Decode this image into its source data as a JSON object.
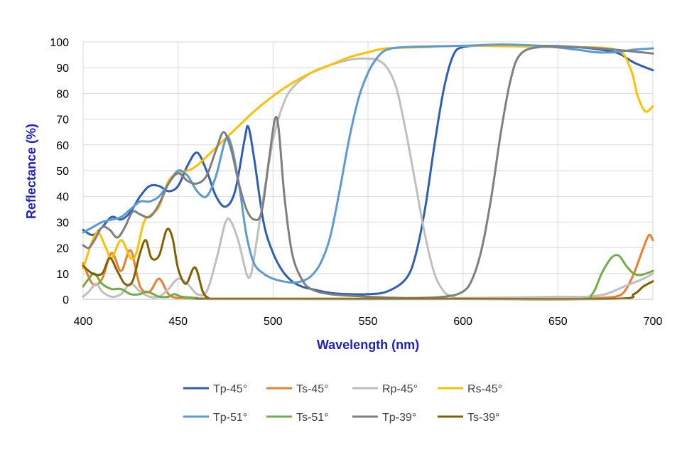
{
  "chart_data": {
    "type": "line",
    "title": "",
    "xlabel": "Wavelength (nm)",
    "ylabel": "Reflectance (%)",
    "xlim": [
      400,
      700
    ],
    "ylim": [
      0,
      100
    ],
    "xticks": [
      400,
      450,
      500,
      550,
      600,
      650,
      700
    ],
    "yticks": [
      0,
      10,
      20,
      30,
      40,
      50,
      60,
      70,
      80,
      90,
      100
    ],
    "grid": true,
    "legend_position": "bottom",
    "series": [
      {
        "name": "Tp-45°",
        "color": "#2f5fb3",
        "points": [
          [
            400,
            27
          ],
          [
            405,
            25
          ],
          [
            410,
            28
          ],
          [
            415,
            32
          ],
          [
            420,
            31
          ],
          [
            425,
            34
          ],
          [
            430,
            40
          ],
          [
            435,
            44
          ],
          [
            440,
            44
          ],
          [
            445,
            42
          ],
          [
            450,
            44
          ],
          [
            455,
            52
          ],
          [
            460,
            57
          ],
          [
            465,
            50
          ],
          [
            470,
            40
          ],
          [
            475,
            36
          ],
          [
            480,
            42
          ],
          [
            485,
            62
          ],
          [
            487,
            67
          ],
          [
            490,
            55
          ],
          [
            495,
            30
          ],
          [
            500,
            18
          ],
          [
            505,
            11
          ],
          [
            510,
            7
          ],
          [
            515,
            5
          ],
          [
            520,
            4
          ],
          [
            530,
            2.5
          ],
          [
            540,
            2
          ],
          [
            550,
            2
          ],
          [
            560,
            3
          ],
          [
            570,
            8
          ],
          [
            575,
            17
          ],
          [
            580,
            35
          ],
          [
            585,
            60
          ],
          [
            590,
            82
          ],
          [
            595,
            95
          ],
          [
            600,
            98
          ],
          [
            610,
            98.5
          ],
          [
            620,
            98.5
          ],
          [
            640,
            98.5
          ],
          [
            660,
            98
          ],
          [
            680,
            96
          ],
          [
            690,
            92
          ],
          [
            700,
            89
          ]
        ]
      },
      {
        "name": "Ts-45°",
        "color": "#ed7d31",
        "points": [
          [
            400,
            14
          ],
          [
            405,
            6
          ],
          [
            410,
            8
          ],
          [
            415,
            18
          ],
          [
            420,
            11
          ],
          [
            425,
            19
          ],
          [
            430,
            5
          ],
          [
            435,
            3
          ],
          [
            440,
            8
          ],
          [
            445,
            2
          ],
          [
            450,
            0.5
          ],
          [
            460,
            0.2
          ],
          [
            500,
            0.2
          ],
          [
            600,
            0.2
          ],
          [
            660,
            0.2
          ],
          [
            670,
            0.5
          ],
          [
            680,
            1
          ],
          [
            685,
            3
          ],
          [
            690,
            10
          ],
          [
            695,
            20
          ],
          [
            698,
            25
          ],
          [
            700,
            23
          ]
        ]
      },
      {
        "name": "Rp-45°",
        "color": "#bfbfbf",
        "points": [
          [
            400,
            1
          ],
          [
            403,
            3
          ],
          [
            407,
            6
          ],
          [
            410,
            3
          ],
          [
            415,
            1
          ],
          [
            420,
            2
          ],
          [
            425,
            6
          ],
          [
            430,
            3
          ],
          [
            435,
            1
          ],
          [
            440,
            1
          ],
          [
            445,
            4
          ],
          [
            450,
            8
          ],
          [
            455,
            6
          ],
          [
            460,
            2
          ],
          [
            465,
            3
          ],
          [
            470,
            15
          ],
          [
            475,
            30
          ],
          [
            478,
            30
          ],
          [
            482,
            22
          ],
          [
            486,
            10
          ],
          [
            488,
            9
          ],
          [
            490,
            16
          ],
          [
            495,
            40
          ],
          [
            500,
            62
          ],
          [
            505,
            75
          ],
          [
            510,
            82
          ],
          [
            520,
            88
          ],
          [
            530,
            91
          ],
          [
            540,
            93
          ],
          [
            545,
            93.5
          ],
          [
            550,
            93.5
          ],
          [
            555,
            93
          ],
          [
            560,
            90
          ],
          [
            565,
            82
          ],
          [
            570,
            65
          ],
          [
            575,
            45
          ],
          [
            580,
            25
          ],
          [
            585,
            10
          ],
          [
            590,
            3
          ],
          [
            595,
            1
          ],
          [
            600,
            0.5
          ],
          [
            650,
            1
          ],
          [
            665,
            1
          ],
          [
            675,
            2
          ],
          [
            685,
            5
          ],
          [
            695,
            8
          ],
          [
            700,
            10
          ]
        ]
      },
      {
        "name": "Rs-45°",
        "color": "#ffc000",
        "points": [
          [
            400,
            12
          ],
          [
            405,
            23
          ],
          [
            408,
            26
          ],
          [
            412,
            20
          ],
          [
            415,
            16
          ],
          [
            420,
            23
          ],
          [
            425,
            16
          ],
          [
            428,
            18
          ],
          [
            432,
            30
          ],
          [
            436,
            33
          ],
          [
            440,
            36
          ],
          [
            445,
            46
          ],
          [
            450,
            49
          ],
          [
            455,
            50
          ],
          [
            460,
            52
          ],
          [
            470,
            59
          ],
          [
            480,
            66
          ],
          [
            490,
            73
          ],
          [
            500,
            79
          ],
          [
            510,
            84
          ],
          [
            520,
            88
          ],
          [
            530,
            91
          ],
          [
            540,
            94
          ],
          [
            550,
            96
          ],
          [
            560,
            97.5
          ],
          [
            580,
            98
          ],
          [
            600,
            98.5
          ],
          [
            650,
            98
          ],
          [
            680,
            97
          ],
          [
            688,
            90
          ],
          [
            692,
            79
          ],
          [
            696,
            73
          ],
          [
            700,
            75
          ]
        ]
      },
      {
        "name": "Tp-51°",
        "color": "#5b9bd5",
        "points": [
          [
            400,
            26
          ],
          [
            405,
            28
          ],
          [
            410,
            30
          ],
          [
            415,
            31
          ],
          [
            420,
            32
          ],
          [
            425,
            35
          ],
          [
            430,
            38
          ],
          [
            435,
            38
          ],
          [
            440,
            40
          ],
          [
            445,
            45
          ],
          [
            450,
            50
          ],
          [
            455,
            48
          ],
          [
            460,
            42
          ],
          [
            465,
            40
          ],
          [
            470,
            48
          ],
          [
            475,
            62
          ],
          [
            478,
            60
          ],
          [
            482,
            45
          ],
          [
            486,
            25
          ],
          [
            490,
            14
          ],
          [
            495,
            10
          ],
          [
            500,
            8
          ],
          [
            505,
            7
          ],
          [
            510,
            6.5
          ],
          [
            515,
            7
          ],
          [
            520,
            9
          ],
          [
            525,
            14
          ],
          [
            530,
            24
          ],
          [
            535,
            42
          ],
          [
            540,
            62
          ],
          [
            545,
            78
          ],
          [
            550,
            88
          ],
          [
            555,
            94
          ],
          [
            560,
            97
          ],
          [
            570,
            98
          ],
          [
            600,
            98.5
          ],
          [
            620,
            99
          ],
          [
            640,
            98.5
          ],
          [
            660,
            97
          ],
          [
            670,
            96
          ],
          [
            680,
            96
          ],
          [
            690,
            97
          ],
          [
            700,
            97.5
          ]
        ]
      },
      {
        "name": "Ts-51°",
        "color": "#70ad47",
        "points": [
          [
            400,
            5
          ],
          [
            403,
            8
          ],
          [
            406,
            10
          ],
          [
            410,
            6
          ],
          [
            415,
            4
          ],
          [
            420,
            4
          ],
          [
            425,
            2
          ],
          [
            430,
            2
          ],
          [
            433,
            3
          ],
          [
            437,
            2
          ],
          [
            440,
            1
          ],
          [
            445,
            1
          ],
          [
            448,
            2
          ],
          [
            452,
            1
          ],
          [
            460,
            0.5
          ],
          [
            470,
            0.1
          ],
          [
            600,
            0.1
          ],
          [
            660,
            0.1
          ],
          [
            668,
            2
          ],
          [
            673,
            10
          ],
          [
            678,
            16
          ],
          [
            682,
            17
          ],
          [
            686,
            13
          ],
          [
            690,
            10
          ],
          [
            694,
            9.5
          ],
          [
            700,
            11
          ]
        ]
      },
      {
        "name": "Tp-39°",
        "color": "#7f7f7f",
        "points": [
          [
            400,
            21
          ],
          [
            403,
            20
          ],
          [
            406,
            23
          ],
          [
            410,
            28
          ],
          [
            414,
            27
          ],
          [
            418,
            24
          ],
          [
            422,
            28
          ],
          [
            426,
            34
          ],
          [
            430,
            33
          ],
          [
            435,
            32
          ],
          [
            440,
            37
          ],
          [
            445,
            45
          ],
          [
            450,
            49
          ],
          [
            455,
            46
          ],
          [
            460,
            45
          ],
          [
            465,
            48
          ],
          [
            470,
            58
          ],
          [
            474,
            65
          ],
          [
            478,
            58
          ],
          [
            482,
            45
          ],
          [
            486,
            35
          ],
          [
            490,
            31
          ],
          [
            494,
            34
          ],
          [
            498,
            55
          ],
          [
            501,
            70
          ],
          [
            503,
            66
          ],
          [
            506,
            40
          ],
          [
            510,
            18
          ],
          [
            515,
            8
          ],
          [
            520,
            4
          ],
          [
            530,
            2
          ],
          [
            550,
            1
          ],
          [
            570,
            0.5
          ],
          [
            590,
            1
          ],
          [
            600,
            3
          ],
          [
            605,
            8
          ],
          [
            610,
            20
          ],
          [
            615,
            40
          ],
          [
            620,
            65
          ],
          [
            625,
            85
          ],
          [
            630,
            95
          ],
          [
            640,
            98
          ],
          [
            660,
            98
          ],
          [
            680,
            97
          ],
          [
            700,
            95.5
          ]
        ]
      },
      {
        "name": "Ts-39°",
        "color": "#806000",
        "points": [
          [
            400,
            13
          ],
          [
            405,
            10
          ],
          [
            410,
            10
          ],
          [
            414,
            16
          ],
          [
            418,
            11
          ],
          [
            422,
            6
          ],
          [
            426,
            7
          ],
          [
            430,
            18
          ],
          [
            433,
            23
          ],
          [
            436,
            16
          ],
          [
            440,
            17
          ],
          [
            444,
            27
          ],
          [
            447,
            24
          ],
          [
            450,
            12
          ],
          [
            454,
            6
          ],
          [
            458,
            12
          ],
          [
            460,
            11
          ],
          [
            463,
            3
          ],
          [
            466,
            0.5
          ],
          [
            470,
            0.2
          ],
          [
            600,
            0.2
          ],
          [
            680,
            0.2
          ],
          [
            690,
            2
          ],
          [
            695,
            5
          ],
          [
            700,
            7
          ]
        ]
      }
    ]
  }
}
